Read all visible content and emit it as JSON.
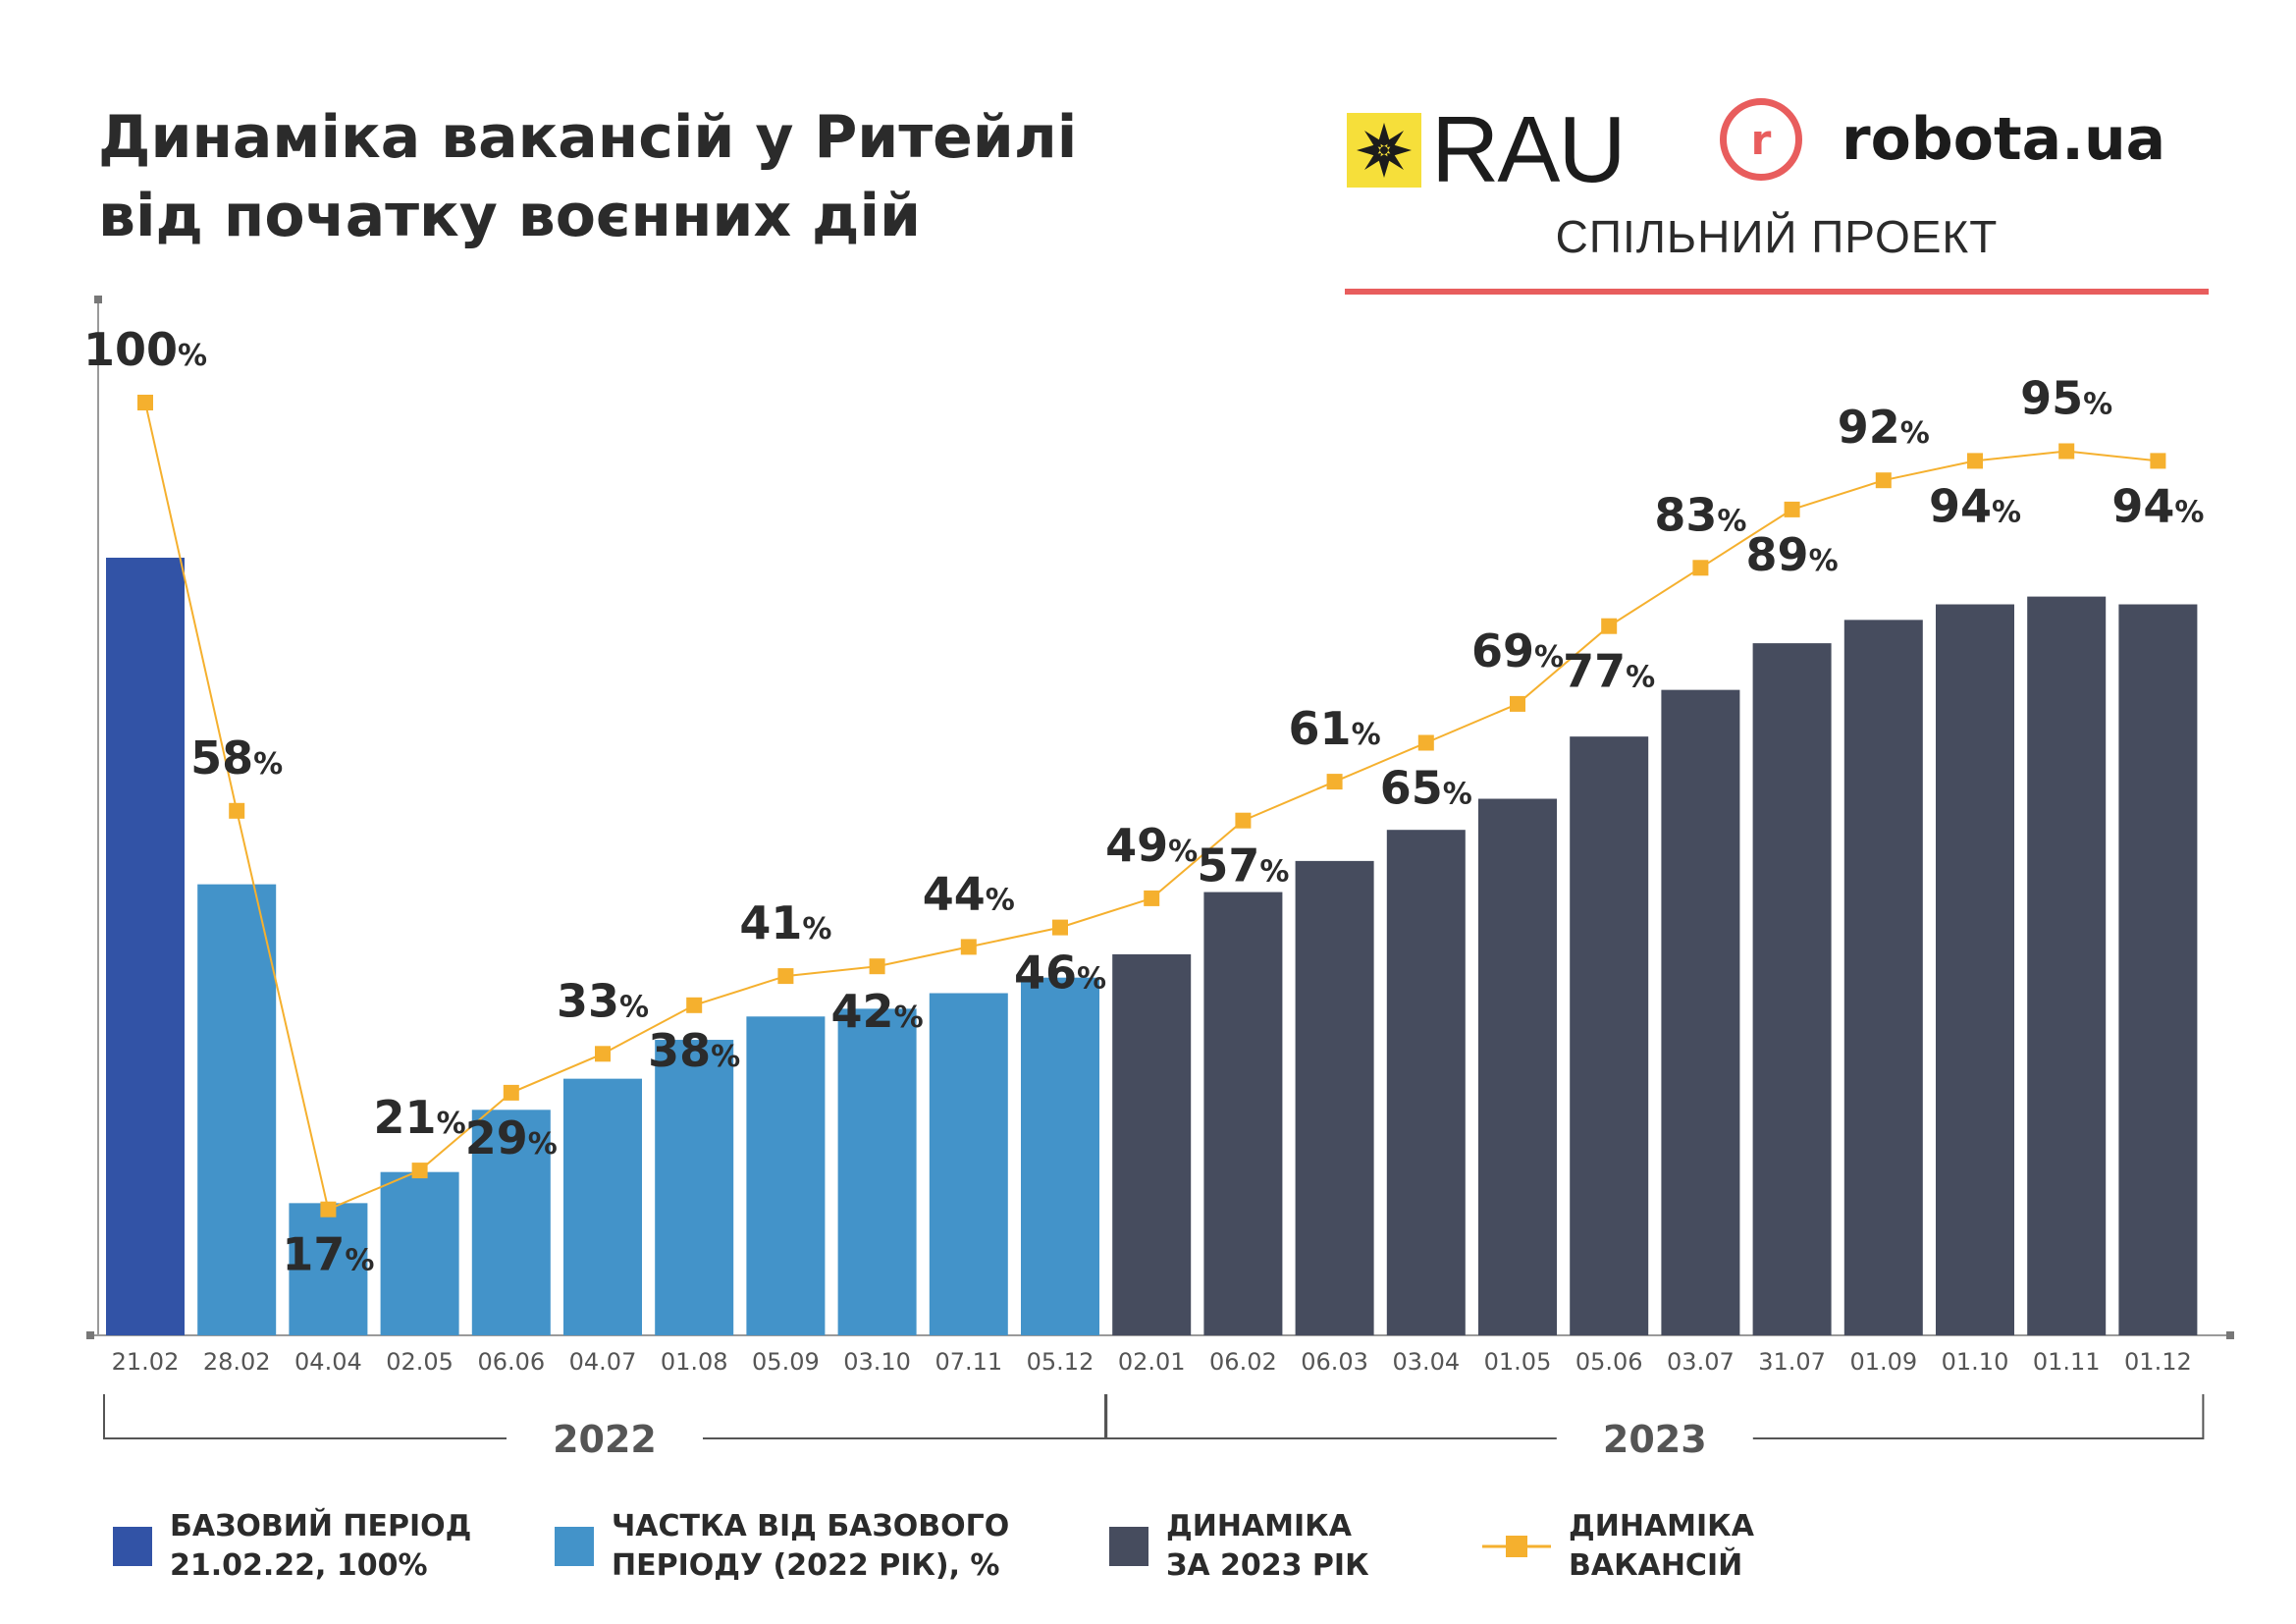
{
  "title_line1": "Динаміка вакансій у Ритейлі",
  "title_line2": "від початку воєнних дій",
  "logos": {
    "rau": "RAU",
    "robota_mark": "r",
    "robota": "robota.ua",
    "project": "СПІЛЬНИЙ ПРОЕКТ"
  },
  "colors": {
    "base": "#3253a6",
    "share_2022": "#4393c9",
    "dynamics_2023": "#464c5e",
    "line": "#f5b02e",
    "accent": "#e85d5d",
    "rau_yellow": "#f6df3a"
  },
  "legend": [
    {
      "line1": "БАЗОВИЙ ПЕРІОД",
      "line2": "21.02.22, 100%",
      "color": "#3253a6",
      "kind": "box"
    },
    {
      "line1": "ЧАСТКА ВІД БАЗОВОГО",
      "line2": "ПЕРІОДУ (2022 РІК), %",
      "color": "#4393c9",
      "kind": "box"
    },
    {
      "line1": "ДИНАМІКА",
      "line2": "ЗА 2023 РІК",
      "color": "#464c5e",
      "kind": "box"
    },
    {
      "line1": "ДИНАМІКА",
      "line2": "ВАКАНСІЙ",
      "color": "#f5b02e",
      "kind": "line"
    }
  ],
  "chart_data": {
    "type": "bar",
    "title": "",
    "xlabel": "",
    "ylabel": "",
    "ylim": [
      0,
      100
    ],
    "grid": false,
    "legend_placement": "bottom",
    "categories": [
      "21.02",
      "28.02",
      "04.04",
      "02.05",
      "06.06",
      "04.07",
      "01.08",
      "05.09",
      "03.10",
      "07.11",
      "05.12",
      "02.01",
      "06.02",
      "06.03",
      "03.04",
      "01.05",
      "05.06",
      "03.07",
      "31.07",
      "01.09",
      "01.10",
      "01.11",
      "01.12"
    ],
    "groups": [
      {
        "label": "2022",
        "from": 0,
        "to": 10
      },
      {
        "label": "2023",
        "from": 11,
        "to": 22
      }
    ],
    "series": [
      {
        "name": "БАЗОВИЙ ПЕРІОД 21.02.22, 100%",
        "kind": "bar",
        "indices": [
          0
        ]
      },
      {
        "name": "ЧАСТКА ВІД БАЗОВОГО ПЕРІОДУ (2022 РІК), %",
        "kind": "bar",
        "indices": [
          1,
          2,
          3,
          4,
          5,
          6,
          7,
          8,
          9,
          10
        ]
      },
      {
        "name": "ДИНАМІКА ЗА 2023 РІК",
        "kind": "bar",
        "indices": [
          11,
          12,
          13,
          14,
          15,
          16,
          17,
          18,
          19,
          20,
          21,
          22
        ]
      },
      {
        "name": "ДИНАМІКА ВАКАНСІЙ",
        "kind": "line",
        "indices": "all"
      }
    ],
    "values": [
      100,
      58,
      17,
      21,
      29,
      33,
      38,
      41,
      42,
      44,
      46,
      49,
      57,
      61,
      65,
      69,
      77,
      83,
      89,
      92,
      94,
      95,
      94
    ],
    "label_above": [
      true,
      true,
      false,
      true,
      false,
      true,
      false,
      true,
      false,
      true,
      false,
      true,
      false,
      true,
      false,
      true,
      false,
      true,
      false,
      true,
      false,
      true,
      false
    ],
    "unit": "%"
  }
}
